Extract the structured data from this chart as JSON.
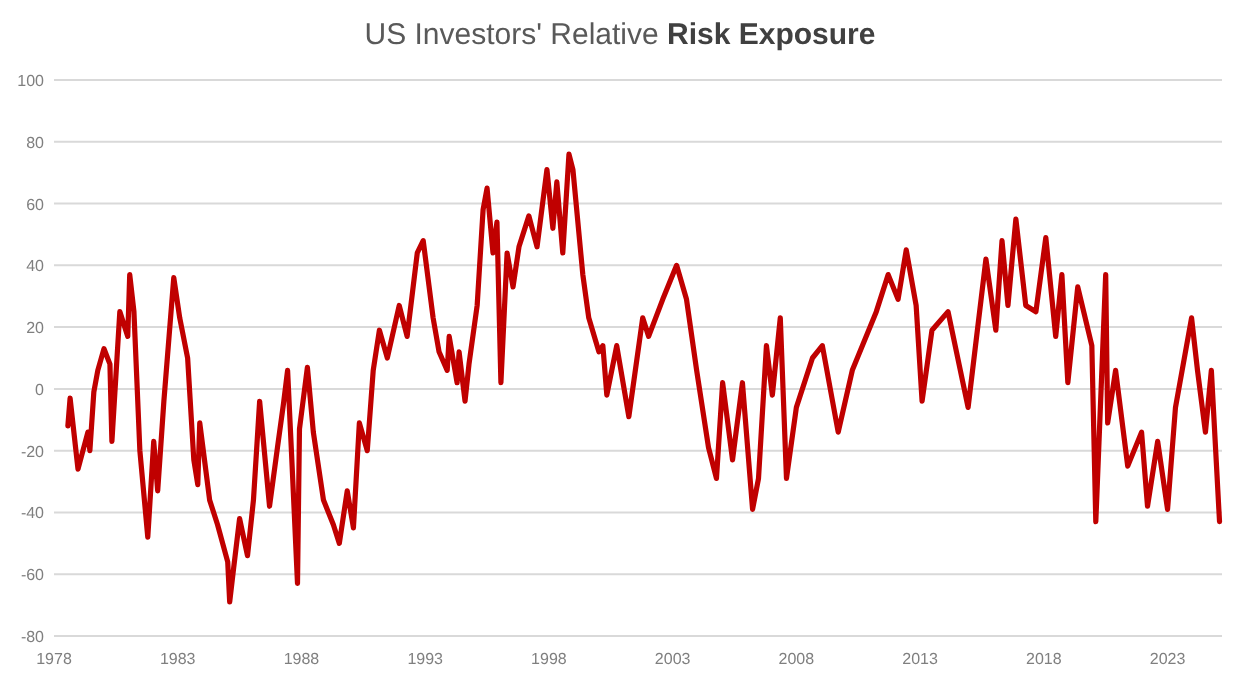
{
  "chart_data": {
    "type": "line",
    "title": "US Investors' Relative Risk Exposure",
    "xlim": [
      1978,
      2025.2
    ],
    "xticks": [
      1978,
      1983,
      1988,
      1993,
      1998,
      2003,
      2008,
      2013,
      2018,
      2023
    ],
    "ylim": [
      -80,
      100
    ],
    "yticks": [
      -80,
      -60,
      -40,
      -20,
      0,
      20,
      40,
      60,
      80,
      100
    ],
    "grid": "y",
    "marker": "none",
    "line_style": "solid",
    "series": [
      {
        "color": "#c00000",
        "x": [
          1978.56,
          1978.65,
          1978.97,
          1979.37,
          1979.45,
          1979.61,
          1979.77,
          1980.02,
          1980.26,
          1980.34,
          1980.66,
          1980.98,
          1981.06,
          1981.23,
          1981.47,
          1981.79,
          1982.03,
          1982.19,
          1982.44,
          1982.84,
          1983.08,
          1983.4,
          1983.65,
          1983.81,
          1983.89,
          1984.29,
          1984.61,
          1985.02,
          1985.1,
          1985.26,
          1985.5,
          1985.82,
          1986.06,
          1986.31,
          1986.71,
          1987.03,
          1987.27,
          1987.44,
          1987.6,
          1987.84,
          1987.92,
          1988.24,
          1988.48,
          1988.89,
          1989.29,
          1989.53,
          1989.85,
          1990.1,
          1990.34,
          1990.66,
          1990.9,
          1991.15,
          1991.47,
          1991.95,
          1992.27,
          1992.68,
          1992.92,
          1993.32,
          1993.56,
          1993.89,
          1993.97,
          1994.29,
          1994.37,
          1994.61,
          1994.77,
          1995.1,
          1995.34,
          1995.5,
          1995.74,
          1995.9,
          1996.06,
          1996.31,
          1996.55,
          1996.79,
          1997.19,
          1997.52,
          1997.92,
          1998.16,
          1998.32,
          1998.56,
          1998.81,
          1998.97,
          1999.37,
          1999.61,
          2000.02,
          2000.18,
          2000.34,
          2000.74,
          2001.23,
          2001.79,
          2002.03,
          2002.6,
          2003.16,
          2003.56,
          2003.97,
          2004.45,
          2004.77,
          2005.02,
          2005.42,
          2005.82,
          2006.23,
          2006.47,
          2006.79,
          2007.03,
          2007.35,
          2007.6,
          2008.0,
          2008.65,
          2009.05,
          2009.69,
          2010.26,
          2011.23,
          2011.71,
          2012.11,
          2012.44,
          2012.84,
          2013.08,
          2013.48,
          2014.13,
          2014.94,
          2015.66,
          2016.06,
          2016.31,
          2016.55,
          2016.87,
          2017.27,
          2017.68,
          2018.08,
          2018.48,
          2018.73,
          2018.97,
          2019.37,
          2019.94,
          2020.1,
          2020.5,
          2020.58,
          2020.9,
          2021.39,
          2021.95,
          2022.19,
          2022.6,
          2023.0,
          2023.32,
          2023.97,
          2024.21,
          2024.53,
          2024.77,
          2025.1
        ],
        "values": [
          -12,
          -3,
          -26,
          -14,
          -20,
          -1,
          6,
          13,
          8,
          -17,
          25,
          17,
          37,
          25,
          -20,
          -48,
          -17,
          -33,
          -4,
          36,
          23,
          10,
          -23,
          -31,
          -11,
          -36,
          -44,
          -56,
          -69,
          -58,
          -42,
          -54,
          -36,
          -4,
          -38,
          -19,
          -5,
          6,
          -21,
          -63,
          -13,
          7,
          -14,
          -36,
          -44,
          -50,
          -33,
          -45,
          -11,
          -20,
          6,
          19,
          10,
          27,
          17,
          44,
          48,
          23,
          12,
          6,
          17,
          2,
          12,
          -4,
          8,
          27,
          58,
          65,
          44,
          54,
          2,
          44,
          33,
          46,
          56,
          46,
          71,
          52,
          67,
          44,
          76,
          71,
          37,
          23,
          12,
          14,
          -2,
          14,
          -9,
          23,
          17,
          29,
          40,
          29,
          6,
          -19,
          -29,
          2,
          -23,
          2,
          -39,
          -29,
          14,
          -2,
          23,
          -29,
          -6,
          10,
          14,
          -14,
          6,
          25,
          37,
          29,
          45,
          27,
          -4,
          19,
          25,
          -6,
          42,
          19,
          48,
          27,
          55,
          27,
          25,
          49,
          17,
          37,
          2,
          33,
          14,
          -43,
          37,
          -11,
          6,
          -25,
          -14,
          -38,
          -17,
          -39,
          -6,
          23,
          6,
          -14,
          6,
          -43
        ]
      }
    ]
  }
}
